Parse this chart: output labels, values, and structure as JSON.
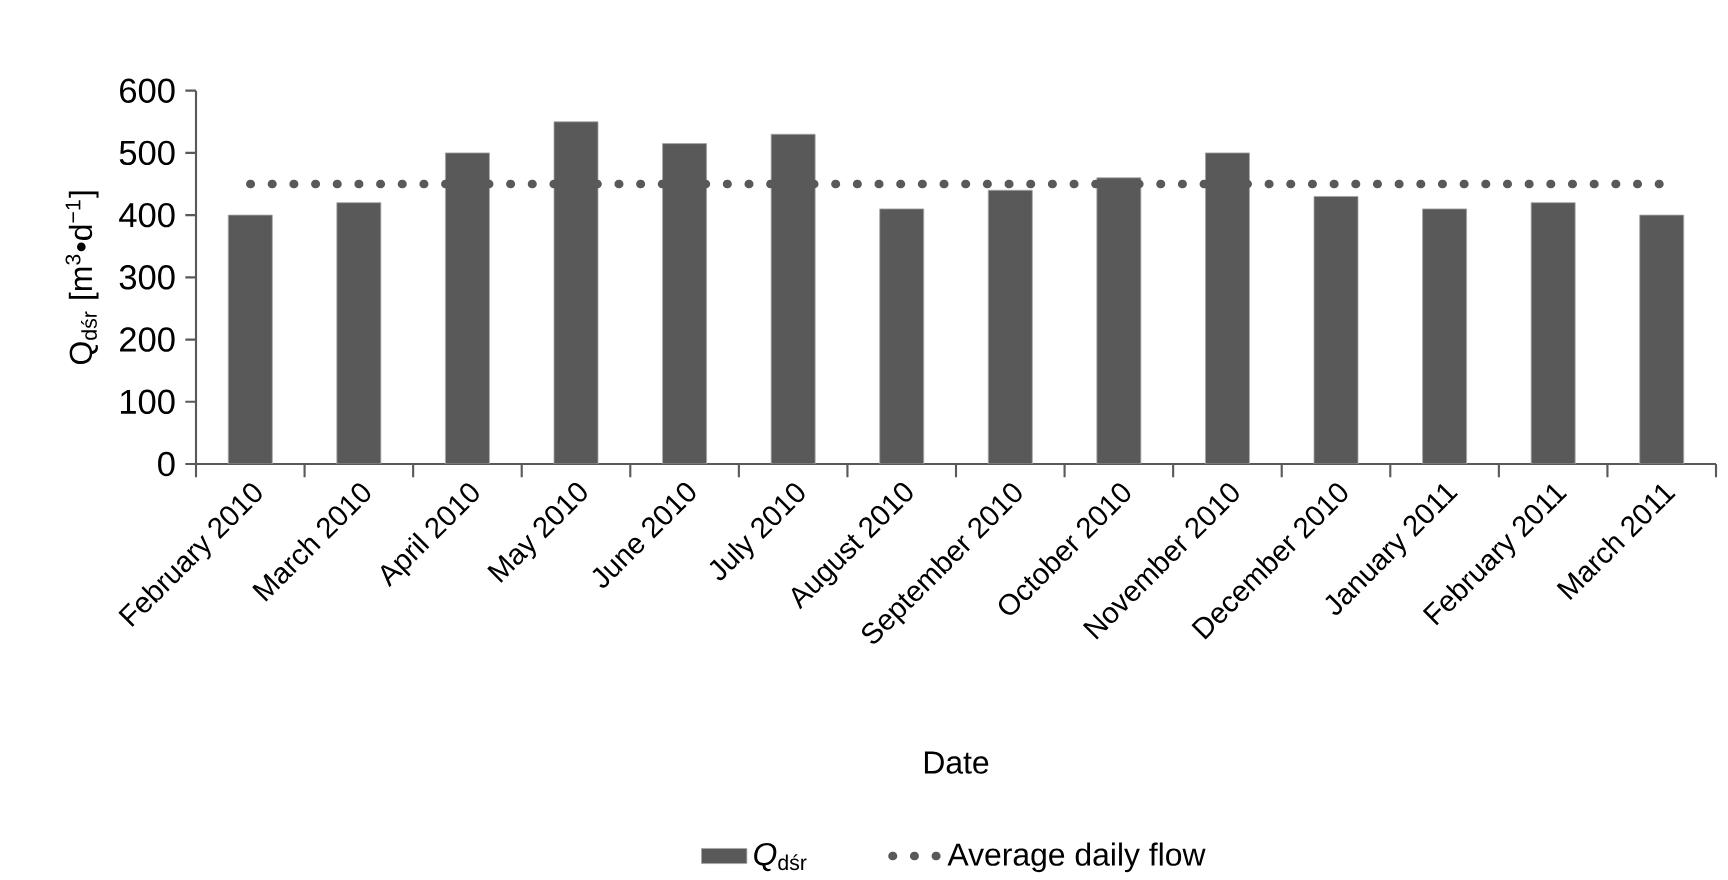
{
  "chart_data": {
    "type": "bar",
    "xlabel": "Date",
    "ylabel": "Q$_{dśr}$ [m$^{3}$•d$^{−1}$]",
    "categories": [
      "February 2010",
      "March 2010",
      "April 2010",
      "May 2010",
      "June 2010",
      "July 2010",
      "August 2010",
      "September 2010",
      "October 2010",
      "November 2010",
      "December 2010",
      "January 2011",
      "February 2011",
      "March 2011"
    ],
    "series": [
      {
        "name": "*Q*$_{dśr}$",
        "color": "#595959",
        "values": [
          400,
          420,
          500,
          550,
          515,
          530,
          410,
          440,
          460,
          500,
          430,
          410,
          420,
          400
        ]
      },
      {
        "name": "Average daily flow",
        "type": "line",
        "color": "#595959",
        "line_style": "dotted",
        "marker": "none",
        "values": [
          450,
          450,
          450,
          450,
          450,
          450,
          450,
          450,
          450,
          450,
          450,
          450,
          450,
          450
        ]
      }
    ],
    "ylim": [
      0,
      600
    ],
    "yticks": [
      0,
      100,
      200,
      300,
      400,
      500,
      600
    ],
    "legend": "bottom"
  }
}
